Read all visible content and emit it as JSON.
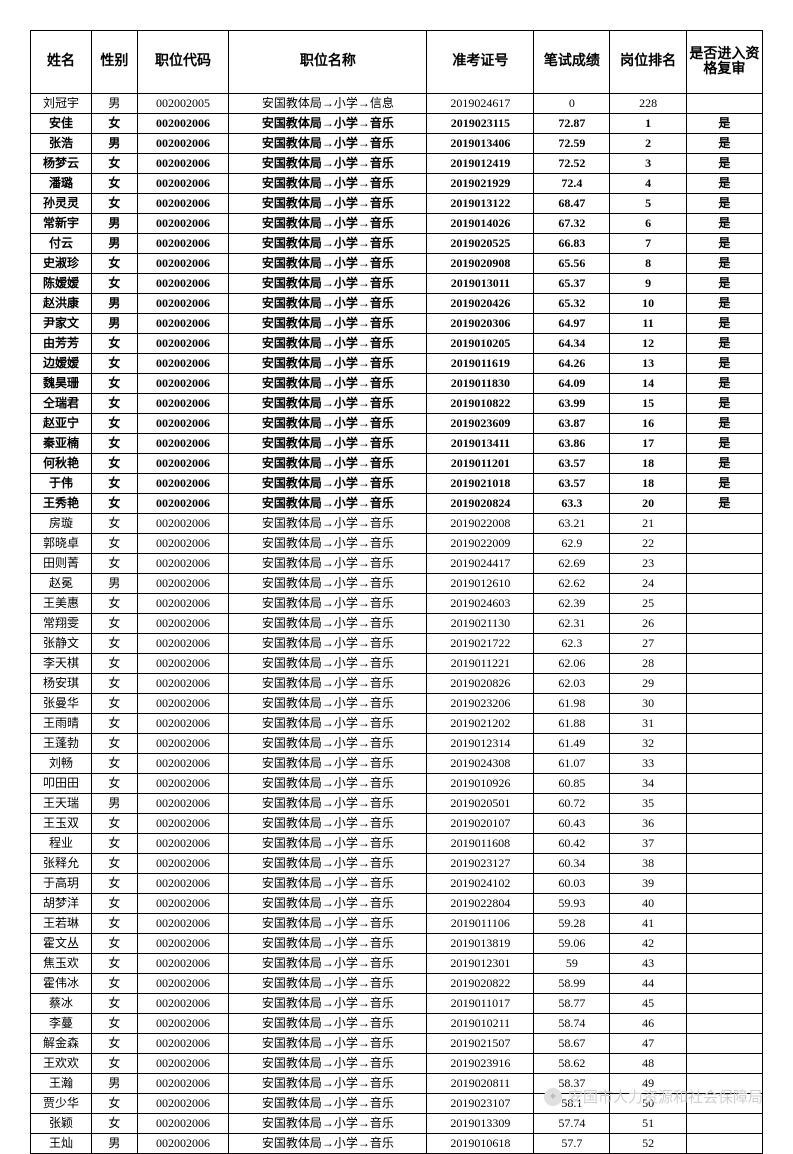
{
  "headers": {
    "name": "姓名",
    "gender": "性别",
    "code": "职位代码",
    "position": "职位名称",
    "exam_no": "准考证号",
    "score": "笔试成绩",
    "rank": "岗位排名",
    "pass": "是否进入资格复审"
  },
  "position_info": "安国教体局→小学→信息",
  "position_music": "安国教体局→小学→音乐",
  "yes": "是",
  "watermark": "安国市人力资源和社会保障局",
  "rows": [
    {
      "n": "刘冠宇",
      "g": "男",
      "c": "002002005",
      "p": "info",
      "e": "2019024617",
      "s": "0",
      "r": "228",
      "pass": "",
      "b": false
    },
    {
      "n": "安佳",
      "g": "女",
      "c": "002002006",
      "p": "music",
      "e": "2019023115",
      "s": "72.87",
      "r": "1",
      "pass": "y",
      "b": true
    },
    {
      "n": "张浩",
      "g": "男",
      "c": "002002006",
      "p": "music",
      "e": "2019013406",
      "s": "72.59",
      "r": "2",
      "pass": "y",
      "b": true
    },
    {
      "n": "杨梦云",
      "g": "女",
      "c": "002002006",
      "p": "music",
      "e": "2019012419",
      "s": "72.52",
      "r": "3",
      "pass": "y",
      "b": true
    },
    {
      "n": "潘璐",
      "g": "女",
      "c": "002002006",
      "p": "music",
      "e": "2019021929",
      "s": "72.4",
      "r": "4",
      "pass": "y",
      "b": true
    },
    {
      "n": "孙灵灵",
      "g": "女",
      "c": "002002006",
      "p": "music",
      "e": "2019013122",
      "s": "68.47",
      "r": "5",
      "pass": "y",
      "b": true
    },
    {
      "n": "常新宇",
      "g": "男",
      "c": "002002006",
      "p": "music",
      "e": "2019014026",
      "s": "67.32",
      "r": "6",
      "pass": "y",
      "b": true
    },
    {
      "n": "付云",
      "g": "男",
      "c": "002002006",
      "p": "music",
      "e": "2019020525",
      "s": "66.83",
      "r": "7",
      "pass": "y",
      "b": true
    },
    {
      "n": "史淑珍",
      "g": "女",
      "c": "002002006",
      "p": "music",
      "e": "2019020908",
      "s": "65.56",
      "r": "8",
      "pass": "y",
      "b": true
    },
    {
      "n": "陈嫒嫒",
      "g": "女",
      "c": "002002006",
      "p": "music",
      "e": "2019013011",
      "s": "65.37",
      "r": "9",
      "pass": "y",
      "b": true
    },
    {
      "n": "赵洪康",
      "g": "男",
      "c": "002002006",
      "p": "music",
      "e": "2019020426",
      "s": "65.32",
      "r": "10",
      "pass": "y",
      "b": true
    },
    {
      "n": "尹家文",
      "g": "男",
      "c": "002002006",
      "p": "music",
      "e": "2019020306",
      "s": "64.97",
      "r": "11",
      "pass": "y",
      "b": true
    },
    {
      "n": "由芳芳",
      "g": "女",
      "c": "002002006",
      "p": "music",
      "e": "2019010205",
      "s": "64.34",
      "r": "12",
      "pass": "y",
      "b": true
    },
    {
      "n": "边嫒嫒",
      "g": "女",
      "c": "002002006",
      "p": "music",
      "e": "2019011619",
      "s": "64.26",
      "r": "13",
      "pass": "y",
      "b": true
    },
    {
      "n": "魏昊珊",
      "g": "女",
      "c": "002002006",
      "p": "music",
      "e": "2019011830",
      "s": "64.09",
      "r": "14",
      "pass": "y",
      "b": true
    },
    {
      "n": "仝瑞君",
      "g": "女",
      "c": "002002006",
      "p": "music",
      "e": "2019010822",
      "s": "63.99",
      "r": "15",
      "pass": "y",
      "b": true
    },
    {
      "n": "赵亚宁",
      "g": "女",
      "c": "002002006",
      "p": "music",
      "e": "2019023609",
      "s": "63.87",
      "r": "16",
      "pass": "y",
      "b": true
    },
    {
      "n": "秦亚楠",
      "g": "女",
      "c": "002002006",
      "p": "music",
      "e": "2019013411",
      "s": "63.86",
      "r": "17",
      "pass": "y",
      "b": true
    },
    {
      "n": "何秋艳",
      "g": "女",
      "c": "002002006",
      "p": "music",
      "e": "2019011201",
      "s": "63.57",
      "r": "18",
      "pass": "y",
      "b": true
    },
    {
      "n": "于伟",
      "g": "女",
      "c": "002002006",
      "p": "music",
      "e": "2019021018",
      "s": "63.57",
      "r": "18",
      "pass": "y",
      "b": true
    },
    {
      "n": "王秀艳",
      "g": "女",
      "c": "002002006",
      "p": "music",
      "e": "2019020824",
      "s": "63.3",
      "r": "20",
      "pass": "y",
      "b": true
    },
    {
      "n": "房璇",
      "g": "女",
      "c": "002002006",
      "p": "music",
      "e": "2019022008",
      "s": "63.21",
      "r": "21",
      "pass": "",
      "b": false
    },
    {
      "n": "郭晓卓",
      "g": "女",
      "c": "002002006",
      "p": "music",
      "e": "2019022009",
      "s": "62.9",
      "r": "22",
      "pass": "",
      "b": false
    },
    {
      "n": "田则菁",
      "g": "女",
      "c": "002002006",
      "p": "music",
      "e": "2019024417",
      "s": "62.69",
      "r": "23",
      "pass": "",
      "b": false
    },
    {
      "n": "赵冕",
      "g": "男",
      "c": "002002006",
      "p": "music",
      "e": "2019012610",
      "s": "62.62",
      "r": "24",
      "pass": "",
      "b": false
    },
    {
      "n": "王美惠",
      "g": "女",
      "c": "002002006",
      "p": "music",
      "e": "2019024603",
      "s": "62.39",
      "r": "25",
      "pass": "",
      "b": false
    },
    {
      "n": "常翔雯",
      "g": "女",
      "c": "002002006",
      "p": "music",
      "e": "2019021130",
      "s": "62.31",
      "r": "26",
      "pass": "",
      "b": false
    },
    {
      "n": "张静文",
      "g": "女",
      "c": "002002006",
      "p": "music",
      "e": "2019021722",
      "s": "62.3",
      "r": "27",
      "pass": "",
      "b": false
    },
    {
      "n": "李天棋",
      "g": "女",
      "c": "002002006",
      "p": "music",
      "e": "2019011221",
      "s": "62.06",
      "r": "28",
      "pass": "",
      "b": false
    },
    {
      "n": "杨安琪",
      "g": "女",
      "c": "002002006",
      "p": "music",
      "e": "2019020826",
      "s": "62.03",
      "r": "29",
      "pass": "",
      "b": false
    },
    {
      "n": "张曼华",
      "g": "女",
      "c": "002002006",
      "p": "music",
      "e": "2019023206",
      "s": "61.98",
      "r": "30",
      "pass": "",
      "b": false
    },
    {
      "n": "王雨晴",
      "g": "女",
      "c": "002002006",
      "p": "music",
      "e": "2019021202",
      "s": "61.88",
      "r": "31",
      "pass": "",
      "b": false
    },
    {
      "n": "王蓬勃",
      "g": "女",
      "c": "002002006",
      "p": "music",
      "e": "2019012314",
      "s": "61.49",
      "r": "32",
      "pass": "",
      "b": false
    },
    {
      "n": "刘畅",
      "g": "女",
      "c": "002002006",
      "p": "music",
      "e": "2019024308",
      "s": "61.07",
      "r": "33",
      "pass": "",
      "b": false
    },
    {
      "n": "叩田田",
      "g": "女",
      "c": "002002006",
      "p": "music",
      "e": "2019010926",
      "s": "60.85",
      "r": "34",
      "pass": "",
      "b": false
    },
    {
      "n": "王天瑞",
      "g": "男",
      "c": "002002006",
      "p": "music",
      "e": "2019020501",
      "s": "60.72",
      "r": "35",
      "pass": "",
      "b": false
    },
    {
      "n": "王玉双",
      "g": "女",
      "c": "002002006",
      "p": "music",
      "e": "2019020107",
      "s": "60.43",
      "r": "36",
      "pass": "",
      "b": false
    },
    {
      "n": "程业",
      "g": "女",
      "c": "002002006",
      "p": "music",
      "e": "2019011608",
      "s": "60.42",
      "r": "37",
      "pass": "",
      "b": false
    },
    {
      "n": "张释允",
      "g": "女",
      "c": "002002006",
      "p": "music",
      "e": "2019023127",
      "s": "60.34",
      "r": "38",
      "pass": "",
      "b": false
    },
    {
      "n": "于高玥",
      "g": "女",
      "c": "002002006",
      "p": "music",
      "e": "2019024102",
      "s": "60.03",
      "r": "39",
      "pass": "",
      "b": false
    },
    {
      "n": "胡梦洋",
      "g": "女",
      "c": "002002006",
      "p": "music",
      "e": "2019022804",
      "s": "59.93",
      "r": "40",
      "pass": "",
      "b": false
    },
    {
      "n": "王若琳",
      "g": "女",
      "c": "002002006",
      "p": "music",
      "e": "2019011106",
      "s": "59.28",
      "r": "41",
      "pass": "",
      "b": false
    },
    {
      "n": "霍文丛",
      "g": "女",
      "c": "002002006",
      "p": "music",
      "e": "2019013819",
      "s": "59.06",
      "r": "42",
      "pass": "",
      "b": false
    },
    {
      "n": "焦玉欢",
      "g": "女",
      "c": "002002006",
      "p": "music",
      "e": "2019012301",
      "s": "59",
      "r": "43",
      "pass": "",
      "b": false
    },
    {
      "n": "霍伟冰",
      "g": "女",
      "c": "002002006",
      "p": "music",
      "e": "2019020822",
      "s": "58.99",
      "r": "44",
      "pass": "",
      "b": false
    },
    {
      "n": "蔡冰",
      "g": "女",
      "c": "002002006",
      "p": "music",
      "e": "2019011017",
      "s": "58.77",
      "r": "45",
      "pass": "",
      "b": false
    },
    {
      "n": "李蔓",
      "g": "女",
      "c": "002002006",
      "p": "music",
      "e": "2019010211",
      "s": "58.74",
      "r": "46",
      "pass": "",
      "b": false
    },
    {
      "n": "解金森",
      "g": "女",
      "c": "002002006",
      "p": "music",
      "e": "2019021507",
      "s": "58.67",
      "r": "47",
      "pass": "",
      "b": false
    },
    {
      "n": "王欢欢",
      "g": "女",
      "c": "002002006",
      "p": "music",
      "e": "2019023916",
      "s": "58.62",
      "r": "48",
      "pass": "",
      "b": false
    },
    {
      "n": "王瀚",
      "g": "男",
      "c": "002002006",
      "p": "music",
      "e": "2019020811",
      "s": "58.37",
      "r": "49",
      "pass": "",
      "b": false
    },
    {
      "n": "贾少华",
      "g": "女",
      "c": "002002006",
      "p": "music",
      "e": "2019023107",
      "s": "58.1",
      "r": "50",
      "pass": "",
      "b": false
    },
    {
      "n": "张颖",
      "g": "女",
      "c": "002002006",
      "p": "music",
      "e": "2019013309",
      "s": "57.74",
      "r": "51",
      "pass": "",
      "b": false
    },
    {
      "n": "王灿",
      "g": "男",
      "c": "002002006",
      "p": "music",
      "e": "2019010618",
      "s": "57.7",
      "r": "52",
      "pass": "",
      "b": false
    }
  ]
}
